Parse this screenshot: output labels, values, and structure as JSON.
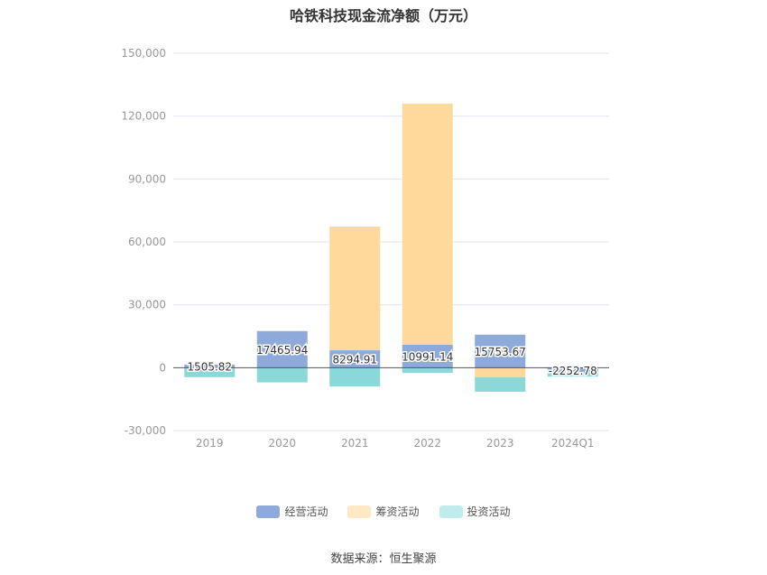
{
  "chart_data": {
    "type": "bar",
    "stacked": true,
    "title": "哈铁科技现金流净额（万元）",
    "categories": [
      "2019",
      "2020",
      "2021",
      "2022",
      "2023",
      "2024Q1"
    ],
    "series": [
      {
        "name": "经营活动",
        "color": "#8eaadb",
        "values": [
          1505.82,
          17465.94,
          8294.91,
          10991.14,
          15753.67,
          -2252.78
        ]
      },
      {
        "name": "筹资活动",
        "color": "#ffd99c",
        "values": [
          0,
          0,
          59000,
          115000,
          -4500,
          0
        ]
      },
      {
        "name": "投资活动",
        "color": "#8ad8d8",
        "values": [
          -4500,
          -7000,
          -9000,
          -2500,
          -7000,
          -2000
        ]
      }
    ],
    "data_labels": [
      "1505.82",
      "17465.94",
      "8294.91",
      "10991.14",
      "15753.67",
      "-2252.78"
    ],
    "ylim": [
      -30000,
      150000
    ],
    "yticks": [
      -30000,
      0,
      30000,
      60000,
      90000,
      120000,
      150000
    ],
    "ytick_labels": [
      "-30,000",
      "0",
      "30,000",
      "60,000",
      "90,000",
      "120,000",
      "150,000"
    ],
    "grid": true,
    "legend_position": "bottom",
    "source": "数据来源：恒生聚源"
  }
}
